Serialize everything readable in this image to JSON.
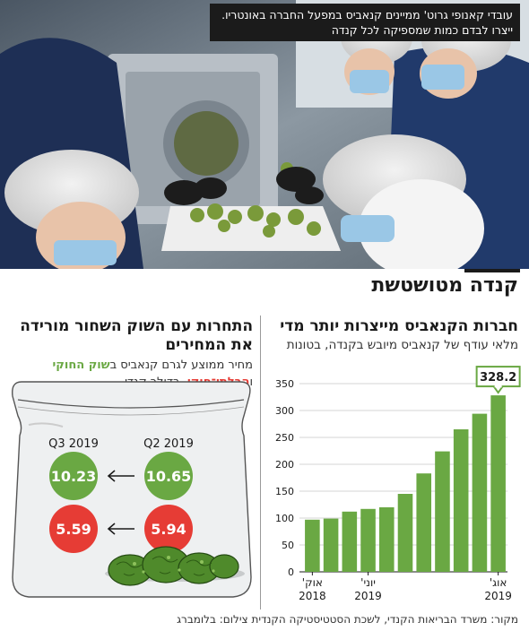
{
  "photo": {
    "caption": "עובדי קאנופי גרוט' ממיינים קנאביס במפעל החברה באונטריו. ייצרו לבדם כמות שמספיקה לכל קנדה"
  },
  "section_title": "קנדה מטושטשת",
  "right_panel": {
    "title": "חברות הקנאביס מייצרות יותר מדי",
    "subtitle": "מלאי עודף של קנאביס מיובש בקנדה, בטונות"
  },
  "left_panel": {
    "title": "התחרות עם השוק השחור מורידה את המחירים",
    "subtitle_before": "מחיר ממוצע לגרם קנאביס ב",
    "legal_label": "שוק החוקי",
    "subtitle_and": " ו",
    "illegal_label": "הבלתי־חוקי",
    "subtitle_after": ", בדולר קנדי",
    "col_q2": "Q2 2019",
    "col_q3": "Q3 2019",
    "legal_q2": "10.65",
    "legal_q3": "10.23",
    "illegal_q2": "5.94",
    "illegal_q3": "5.59",
    "arrow_icon": "left-arrow-icon",
    "colors": {
      "legal": "#6aa843",
      "illegal": "#e63c35"
    }
  },
  "chart_data": [
    {
      "type": "bar",
      "title": "חברות הקנאביס מייצרות יותר מדי",
      "subtitle": "מלאי עודף של קנאביס מיובש בקנדה, בטונות",
      "values": [
        97,
        99,
        112,
        117,
        120,
        145,
        183,
        224,
        265,
        294,
        328.2
      ],
      "x_labels": [
        {
          "index": 0,
          "line1": "אוק'",
          "line2": "2018"
        },
        {
          "index": 3,
          "line1": "יוני'",
          "line2": "2019"
        },
        {
          "index": 10,
          "line1": "אוג'",
          "line2": "2019"
        }
      ],
      "callout": {
        "index": 10,
        "text": "328.2"
      },
      "ylim": [
        0,
        350
      ],
      "yticks": [
        0,
        50,
        100,
        150,
        200,
        250,
        300,
        350
      ],
      "grid": true,
      "color": "#6aa843"
    },
    {
      "type": "table",
      "title": "התחרות עם השוק השחור מורידה את המחירים",
      "columns": [
        "Q2 2019",
        "Q3 2019"
      ],
      "series": [
        {
          "name": "שוק החוקי",
          "values": [
            10.65,
            10.23
          ]
        },
        {
          "name": "הבלתי־חוקי",
          "values": [
            5.94,
            5.59
          ]
        }
      ]
    }
  ],
  "source": "מקור: משרד הבריאות הקנדי, לשכת הסטטיסטיקה הקנדית  צילום: בלומברג"
}
